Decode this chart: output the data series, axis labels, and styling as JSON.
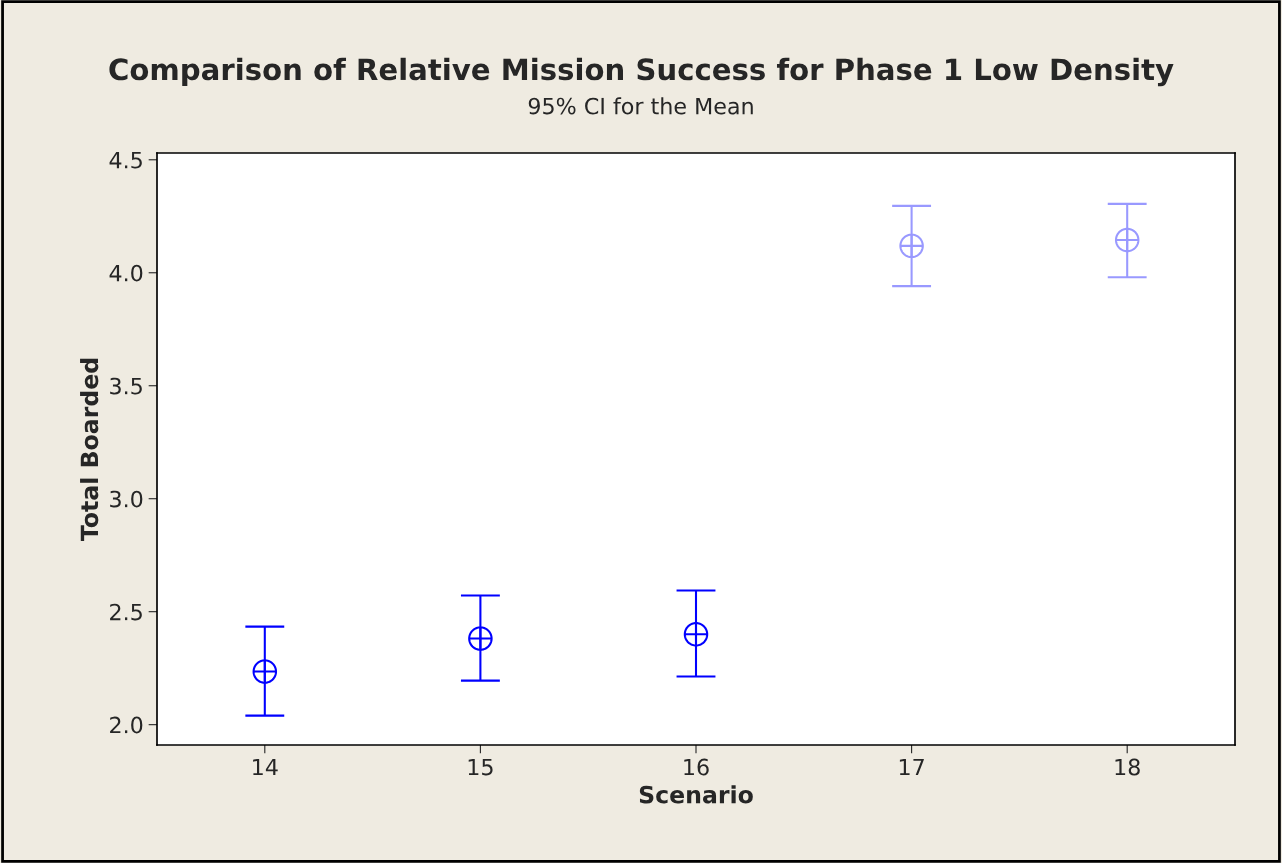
{
  "chart_data": {
    "type": "scatter",
    "title": "Comparison of Relative Mission Success for Phase 1 Low Density",
    "subtitle": "95% CI for the Mean",
    "xlabel": "Scenario",
    "ylabel": "Total Boarded",
    "xlim": [
      13.5,
      18.5
    ],
    "xticks": [
      14,
      15,
      16,
      17,
      18
    ],
    "ylim": [
      1.91,
      4.53
    ],
    "yticks": [
      {
        "value": 2.0,
        "label": "2.0"
      },
      2.5,
      {
        "value": 3.0,
        "label": "3.0"
      },
      3.5,
      {
        "value": 4.0,
        "label": "4.0"
      },
      4.5
    ],
    "marker": "cross",
    "grid": false,
    "legend": false,
    "series": [
      {
        "color": "#0000ff",
        "x": [
          14,
          15,
          16
        ],
        "values": [
          2.235,
          2.381,
          2.4
        ],
        "errors": [
          [
            2.04,
            2.434
          ],
          [
            2.195,
            2.572
          ],
          [
            2.213,
            2.594
          ]
        ]
      },
      {
        "color": "#9999ff",
        "x": [
          17,
          18
        ],
        "values": [
          4.119,
          4.145
        ],
        "errors": [
          [
            3.941,
            4.296
          ],
          [
            3.98,
            4.305
          ]
        ]
      }
    ]
  }
}
